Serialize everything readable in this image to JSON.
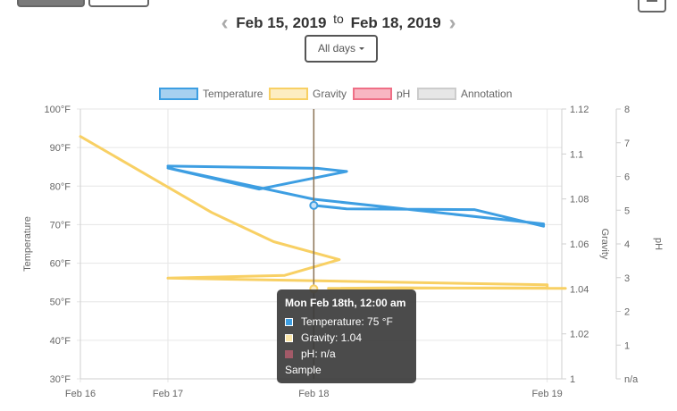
{
  "toolbar": {
    "view_buttons": [
      "chart-view-icon",
      "list-view-icon"
    ],
    "menu_icon": "hamburger-icon"
  },
  "date_range": {
    "prev_icon": "chevron-left-icon",
    "start": "Feb 15, 2019",
    "to": "to",
    "end": "Feb 18, 2019",
    "next_icon": "chevron-right-icon"
  },
  "filter": {
    "label": "All days"
  },
  "colors": {
    "temperature": "#3d9ee2",
    "gravity": "#f8d064",
    "ph": "#ef6f86",
    "annotation": "#cccccc",
    "cursor": "#8b7355"
  },
  "tooltip": {
    "title": "Mon Feb 18th, 12:00 am",
    "temperature": "Temperature: 75 °F",
    "gravity": "Gravity: 1.04",
    "ph": "pH: n/a",
    "note": "Sample"
  },
  "chart_data": {
    "type": "line",
    "legend": {
      "position": "top",
      "entries": [
        "Temperature",
        "Gravity",
        "pH",
        "Annotation"
      ]
    },
    "x_axis": {
      "ticks": [
        "Feb 16",
        "Feb 17",
        "Feb 18",
        "Feb 19"
      ],
      "tick_hours": [
        0,
        24,
        64,
        128
      ],
      "range_hours": [
        0,
        132
      ]
    },
    "y_axes": {
      "temperature": {
        "label": "Temperature",
        "unit": "°F",
        "range": [
          30,
          100
        ],
        "ticks": [
          "100°F",
          "90°F",
          "80°F",
          "70°F",
          "60°F",
          "50°F",
          "40°F",
          "30°F"
        ],
        "tick_values": [
          100,
          90,
          80,
          70,
          60,
          50,
          40,
          30
        ]
      },
      "gravity": {
        "label": "Gravity",
        "range": [
          1.0,
          1.12
        ],
        "ticks": [
          "1.12",
          "1.1",
          "1.08",
          "1.06",
          "1.04",
          "1.02",
          "1"
        ],
        "tick_values": [
          1.12,
          1.1,
          1.08,
          1.06,
          1.04,
          1.02,
          1.0
        ]
      },
      "ph": {
        "label": "pH",
        "range": [
          0,
          8
        ],
        "ticks": [
          "8",
          "7",
          "6",
          "5",
          "4",
          "3",
          "2",
          "1",
          "n/a"
        ],
        "tick_values": [
          8,
          7,
          6,
          5,
          4,
          3,
          2,
          1,
          0
        ]
      }
    },
    "grid": true,
    "series": [
      {
        "name": "Temperature",
        "axis": "temperature",
        "points": [
          [
            24,
            85.2
          ],
          [
            65,
            84.6
          ],
          [
            73,
            83.8
          ],
          [
            49,
            79.2
          ],
          [
            24,
            84.7
          ],
          [
            64,
            76.6
          ],
          [
            127,
            70.2
          ],
          [
            127,
            69.6
          ],
          [
            108,
            73.9
          ],
          [
            73,
            74.1
          ],
          [
            64,
            75
          ]
        ]
      },
      {
        "name": "Gravity",
        "axis": "gravity",
        "points": [
          [
            0,
            1.1078
          ],
          [
            36,
            1.074
          ],
          [
            53,
            1.061
          ],
          [
            71,
            1.053
          ],
          [
            56,
            1.046
          ],
          [
            24,
            1.0448
          ],
          [
            65,
            1.0436
          ],
          [
            128,
            1.0418
          ],
          [
            128,
            1.0405
          ],
          [
            68,
            1.0402
          ],
          [
            88,
            1.0405
          ],
          [
            130,
            1.0402
          ],
          [
            133,
            1.0402
          ]
        ]
      },
      {
        "name": "pH",
        "axis": "ph",
        "points": []
      }
    ],
    "selected_point": {
      "x_hours": 64,
      "temperature": 75,
      "gravity": 1.04
    }
  }
}
